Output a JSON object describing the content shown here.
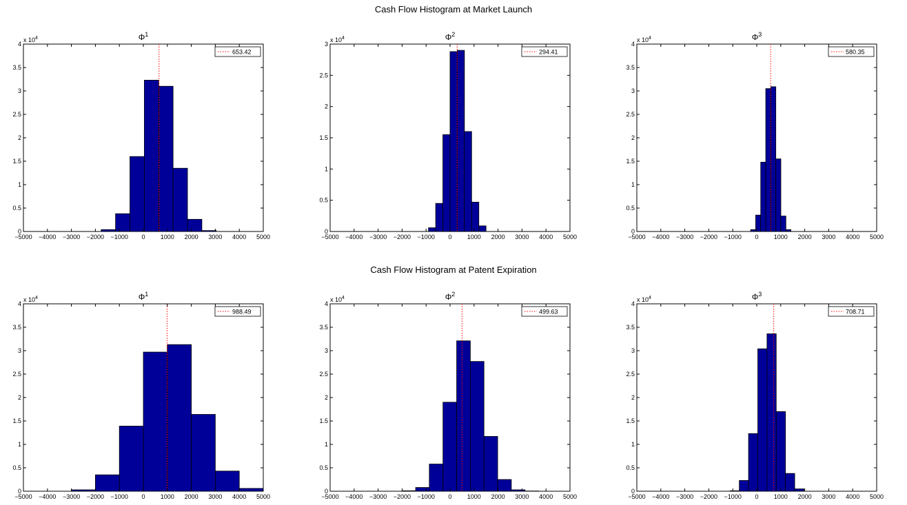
{
  "chart_data": [
    {
      "title": "Cash Flow Histogram at Market Launch",
      "panels": [
        {
          "type": "bar",
          "subtitle": "Φ",
          "superscript": "1",
          "legend": "653.42",
          "mean": 653.42,
          "xlim": [
            -5000,
            5000
          ],
          "ylim": [
            0,
            40000
          ],
          "y_multiplier": "x 10",
          "y_exponent": "4",
          "xticks": [
            -5000,
            -4000,
            -3000,
            -2000,
            -1000,
            0,
            1000,
            2000,
            3000,
            4000,
            5000
          ],
          "yticks": [
            0,
            0.5,
            1,
            1.5,
            2,
            2.5,
            3,
            3.5,
            4
          ],
          "bin_width": 600,
          "bins": [
            {
              "x": -1460,
              "y": 400
            },
            {
              "x": -860,
              "y": 3800
            },
            {
              "x": -260,
              "y": 16000
            },
            {
              "x": 340,
              "y": 32300
            },
            {
              "x": 940,
              "y": 31000
            },
            {
              "x": 1540,
              "y": 13500
            },
            {
              "x": 2140,
              "y": 2600
            },
            {
              "x": 2740,
              "y": 200
            }
          ]
        },
        {
          "type": "bar",
          "subtitle": "Φ",
          "superscript": "2",
          "legend": "294.41",
          "mean": 294.41,
          "xlim": [
            -5000,
            5000
          ],
          "ylim": [
            0,
            30000
          ],
          "y_multiplier": "x 10",
          "y_exponent": "4",
          "xticks": [
            -5000,
            -4000,
            -3000,
            -2000,
            -1000,
            0,
            1000,
            2000,
            3000,
            4000,
            5000
          ],
          "yticks": [
            0,
            0.5,
            1,
            1.5,
            2,
            2.5,
            3
          ],
          "bin_width": 300,
          "bins": [
            {
              "x": -750,
              "y": 600
            },
            {
              "x": -450,
              "y": 4500
            },
            {
              "x": -150,
              "y": 15500
            },
            {
              "x": 150,
              "y": 28800
            },
            {
              "x": 450,
              "y": 29000
            },
            {
              "x": 750,
              "y": 16000
            },
            {
              "x": 1050,
              "y": 4700
            },
            {
              "x": 1350,
              "y": 900
            }
          ]
        },
        {
          "type": "bar",
          "subtitle": "Φ",
          "superscript": "3",
          "legend": "580.35",
          "mean": 580.35,
          "xlim": [
            -5000,
            5000
          ],
          "ylim": [
            0,
            40000
          ],
          "y_multiplier": "x 10",
          "y_exponent": "4",
          "xticks": [
            -5000,
            -4000,
            -3000,
            -2000,
            -1000,
            0,
            1000,
            2000,
            3000,
            4000,
            5000
          ],
          "yticks": [
            0,
            0.5,
            1,
            1.5,
            2,
            2.5,
            3,
            3.5,
            4
          ],
          "bin_width": 210,
          "bins": [
            {
              "x": -150,
              "y": 400
            },
            {
              "x": 60,
              "y": 3500
            },
            {
              "x": 270,
              "y": 14800
            },
            {
              "x": 480,
              "y": 30500
            },
            {
              "x": 690,
              "y": 30900
            },
            {
              "x": 900,
              "y": 15500
            },
            {
              "x": 1110,
              "y": 3300
            },
            {
              "x": 1320,
              "y": 400
            }
          ]
        }
      ]
    },
    {
      "title": "Cash Flow Histogram at Patent Expiration",
      "panels": [
        {
          "type": "bar",
          "subtitle": "Φ",
          "superscript": "1",
          "legend": "988.49",
          "mean": 988.49,
          "xlim": [
            -5000,
            5000
          ],
          "ylim": [
            0,
            40000
          ],
          "y_multiplier": "x 10",
          "y_exponent": "4",
          "xticks": [
            -5000,
            -4000,
            -3000,
            -2000,
            -1000,
            0,
            1000,
            2000,
            3000,
            4000,
            5000
          ],
          "yticks": [
            0,
            0.5,
            1,
            1.5,
            2,
            2.5,
            3,
            3.5,
            4
          ],
          "bin_width": 1000,
          "bins": [
            {
              "x": -2500,
              "y": 300
            },
            {
              "x": -1500,
              "y": 3500
            },
            {
              "x": -500,
              "y": 13900
            },
            {
              "x": 500,
              "y": 29700
            },
            {
              "x": 1500,
              "y": 31300
            },
            {
              "x": 2500,
              "y": 16400
            },
            {
              "x": 3500,
              "y": 4300
            },
            {
              "x": 4500,
              "y": 600
            }
          ]
        },
        {
          "type": "bar",
          "subtitle": "Φ",
          "superscript": "2",
          "legend": "499.63",
          "mean": 499.63,
          "xlim": [
            -5000,
            5000
          ],
          "ylim": [
            0,
            40000
          ],
          "y_multiplier": "x 10",
          "y_exponent": "4",
          "xticks": [
            -5000,
            -4000,
            -3000,
            -2000,
            -1000,
            0,
            1000,
            2000,
            3000,
            4000,
            5000
          ],
          "yticks": [
            0,
            0.5,
            1,
            1.5,
            2,
            2.5,
            3,
            3.5,
            4
          ],
          "bin_width": 570,
          "bins": [
            {
              "x": -1720,
              "y": 100
            },
            {
              "x": -1150,
              "y": 800
            },
            {
              "x": -580,
              "y": 5800
            },
            {
              "x": -10,
              "y": 19000
            },
            {
              "x": 560,
              "y": 32100
            },
            {
              "x": 1130,
              "y": 27700
            },
            {
              "x": 1700,
              "y": 11700
            },
            {
              "x": 2270,
              "y": 2500
            },
            {
              "x": 2840,
              "y": 300
            },
            {
              "x": 3410,
              "y": 50
            }
          ]
        },
        {
          "type": "bar",
          "subtitle": "Φ",
          "superscript": "3",
          "legend": "708.71",
          "mean": 708.71,
          "xlim": [
            -5000,
            5000
          ],
          "ylim": [
            0,
            40000
          ],
          "y_multiplier": "x 10",
          "y_exponent": "4",
          "xticks": [
            -5000,
            -4000,
            -3000,
            -2000,
            -1000,
            0,
            1000,
            2000,
            3000,
            4000,
            5000
          ],
          "yticks": [
            0,
            0.5,
            1,
            1.5,
            2,
            2.5,
            3,
            3.5,
            4
          ],
          "bin_width": 385,
          "bins": [
            {
              "x": -920,
              "y": 100
            },
            {
              "x": -535,
              "y": 2300
            },
            {
              "x": -150,
              "y": 12300
            },
            {
              "x": 235,
              "y": 30400
            },
            {
              "x": 620,
              "y": 33600
            },
            {
              "x": 1005,
              "y": 17000
            },
            {
              "x": 1390,
              "y": 3800
            },
            {
              "x": 1775,
              "y": 500
            }
          ]
        }
      ]
    }
  ],
  "colors": {
    "bar_fill": "#000099",
    "bar_edge": "#000000",
    "mean_line": "#ff0000",
    "axis": "#000000"
  }
}
